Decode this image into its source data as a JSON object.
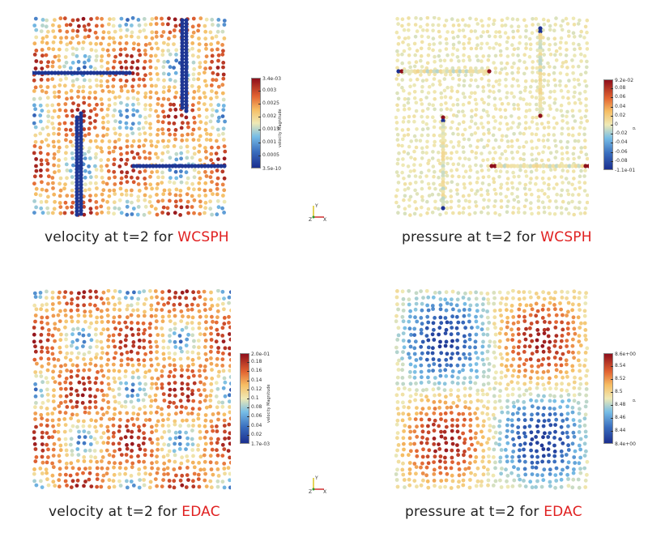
{
  "panels": [
    {
      "id": "vel-wcsph",
      "caption_prefix": "velocity at t=2 for ",
      "caption_method": "WCSPH",
      "colorbar": {
        "title": "velocity Magnitude",
        "max_label": "3.4e-03",
        "min_label": "3.5e-10",
        "ticks": [
          "0.003",
          "0.0025",
          "0.002",
          "0.0015",
          "0.001",
          "0.0005"
        ]
      }
    },
    {
      "id": "pres-wcsph",
      "caption_prefix": "pressure at t=2 for ",
      "caption_method": "WCSPH",
      "colorbar": {
        "title": "p",
        "max_label": "9.2e-02",
        "min_label": "-1.1e-01",
        "ticks": [
          "0.08",
          "0.06",
          "0.04",
          "0.02",
          "0",
          "-0.02",
          "-0.04",
          "-0.06",
          "-0.08"
        ]
      }
    },
    {
      "id": "vel-edac",
      "caption_prefix": "velocity at t=2 for ",
      "caption_method": "EDAC",
      "colorbar": {
        "title": "velocity Magnitude",
        "max_label": "2.0e-01",
        "min_label": "1.7e-03",
        "ticks": [
          "0.18",
          "0.16",
          "0.14",
          "0.12",
          "0.1",
          "0.08",
          "0.06",
          "0.04",
          "0.02"
        ]
      }
    },
    {
      "id": "pres-edac",
      "caption_prefix": "pressure at t=2 for ",
      "caption_method": "EDAC",
      "colorbar": {
        "title": "p",
        "max_label": "8.6e+00",
        "min_label": "8.4e+00",
        "ticks": [
          "8.54",
          "8.52",
          "8.5",
          "8.48",
          "8.46",
          "8.44"
        ]
      }
    }
  ],
  "orientation_axes": {
    "x": "X",
    "y": "Y",
    "z": "Z"
  },
  "colors": {
    "accent": "#e02020",
    "cmap_low": "#1b2f8f",
    "cmap_mid": "#efe9b5",
    "cmap_high": "#8e0f1b"
  }
}
